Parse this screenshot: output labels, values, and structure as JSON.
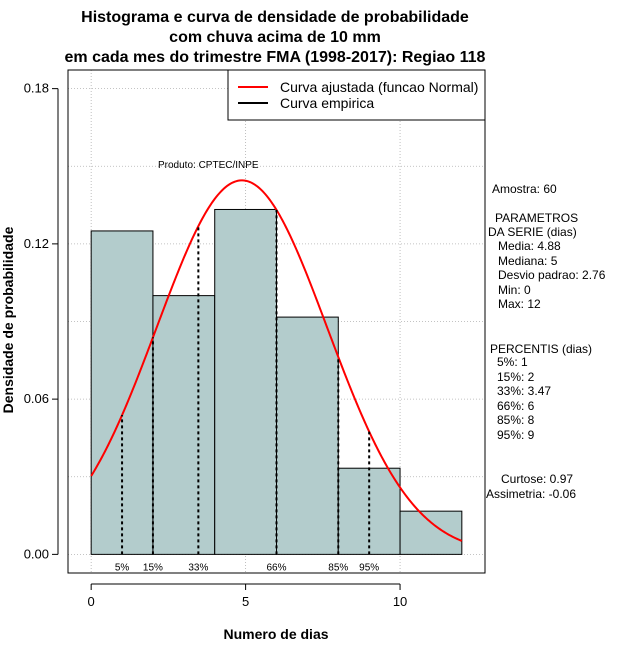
{
  "chart_data": {
    "type": "histogram",
    "title_lines": [
      "Histograma e curva de densidade de probabilidade",
      "com chuva acima de 10 mm",
      "em cada mes do trimestre FMA (1998-2017): Regiao 118"
    ],
    "xlabel": "Numero de dias",
    "ylabel": "Densidade de probabilidade",
    "xlim": [
      -0.75,
      12.75
    ],
    "ylim": [
      -0.0072,
      0.1872
    ],
    "x_ticks": [
      "0",
      "5",
      "10"
    ],
    "x_tick_values": [
      0,
      5,
      10
    ],
    "y_ticks": [
      "0.00",
      "0.06",
      "0.12",
      "0.18"
    ],
    "y_tick_values": [
      0.0,
      0.06,
      0.12,
      0.18
    ],
    "bin_edges": [
      0,
      2,
      4,
      6,
      8,
      10,
      12
    ],
    "densities": [
      0.125,
      0.1,
      0.1333,
      0.0917,
      0.0333,
      0.0167
    ],
    "bar_color": "#b3cccc",
    "normal_curve": {
      "mean": 4.88,
      "sd": 2.76,
      "color": "#ff0000"
    },
    "percentiles": [
      {
        "label": "5%",
        "value": 1
      },
      {
        "label": "15%",
        "value": 2
      },
      {
        "label": "33%",
        "value": 3.47
      },
      {
        "label": "66%",
        "value": 6
      },
      {
        "label": "85%",
        "value": 8
      },
      {
        "label": "95%",
        "value": 9
      }
    ],
    "legend": [
      {
        "label": "Curva ajustada (funcao Normal)",
        "color": "#ff0000"
      },
      {
        "label": "Curva empirica",
        "color": "#000000"
      }
    ],
    "product_label": "Produto: CPTEC/INPE",
    "grid": true
  },
  "stats_panel": {
    "sample": "Amostra: 60",
    "params_title_1": "PARAMETROS",
    "params_title_2": "DA SERIE (dias)",
    "media": "Media: 4.88",
    "mediana": "Mediana: 5",
    "desvio": "Desvio padrao: 2.76",
    "min": "Min: 0",
    "max": "Max: 12",
    "perc_title": "PERCENTIS (dias)",
    "p5": "5%: 1",
    "p15": "15%: 2",
    "p33": "33%: 3.47",
    "p66": "66%: 6",
    "p85": "85%: 8",
    "p95": "95%: 9",
    "curtose": "Curtose: 0.97",
    "assimetria": "Assimetria: -0.06"
  }
}
